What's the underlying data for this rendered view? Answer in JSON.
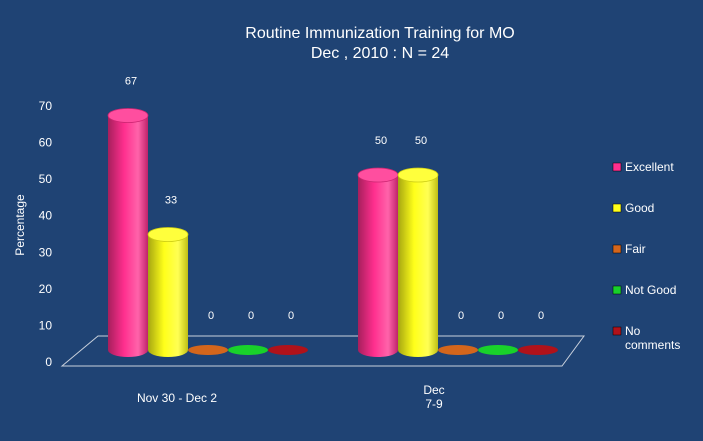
{
  "chart_data": {
    "type": "bar",
    "title_lines": [
      "Routine Immunization Training for MO",
      "Dec , 2010 : N = 24"
    ],
    "ylabel": "Percentage",
    "xlabel": "",
    "ylim": [
      0,
      70
    ],
    "yticks": [
      "0",
      "10",
      "20",
      "30",
      "40",
      "50",
      "60",
      "70"
    ],
    "yticks_num": [
      0,
      10,
      20,
      30,
      40,
      50,
      60,
      70
    ],
    "categories": [
      "Nov 30 - Dec 2",
      "Dec 7-9"
    ],
    "category_lines": [
      [
        "Nov 30 - Dec 2"
      ],
      [
        "Dec",
        "7-9"
      ]
    ],
    "series": [
      {
        "name": "Excellent",
        "values": [
          67,
          50
        ],
        "labels": [
          "67",
          "50"
        ],
        "color": "#ff2f8e"
      },
      {
        "name": "Good",
        "values": [
          33,
          50
        ],
        "labels": [
          "33",
          "50"
        ],
        "color": "#ffff1a"
      },
      {
        "name": "Fair",
        "values": [
          0,
          0
        ],
        "labels": [
          "0",
          "0"
        ],
        "color": "#d4661c"
      },
      {
        "name": "Not Good",
        "values": [
          0,
          0
        ],
        "labels": [
          "0",
          "0"
        ],
        "color": "#19d12a"
      },
      {
        "name": "No comments",
        "values": [
          0,
          0
        ],
        "labels": [
          "0",
          "0"
        ],
        "color": "#b0121a"
      }
    ],
    "legend_label_lines": [
      [
        "Excellent"
      ],
      [
        "Good"
      ],
      [
        "Fair"
      ],
      [
        "Not Good"
      ],
      [
        "No",
        "comments"
      ]
    ],
    "legend_position": "right",
    "grid": false,
    "background": "#1f4374"
  }
}
